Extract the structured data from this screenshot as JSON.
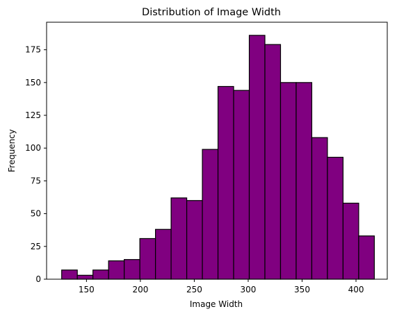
{
  "chart_data": {
    "type": "bar",
    "title": "Distribution of Image Width",
    "xlabel": "Image Width",
    "ylabel": "Frequency",
    "bar_color": "#800080",
    "edge_color": "#000000",
    "x_range": [
      113,
      429
    ],
    "y_range": [
      0,
      196
    ],
    "x_ticks": [
      150,
      200,
      250,
      300,
      350,
      400
    ],
    "y_ticks": [
      0,
      25,
      50,
      75,
      100,
      125,
      150,
      175
    ],
    "bins": [
      {
        "start": 127,
        "end": 141.5,
        "value": 7
      },
      {
        "start": 141.5,
        "end": 156,
        "value": 3
      },
      {
        "start": 156,
        "end": 170.5,
        "value": 7
      },
      {
        "start": 170.5,
        "end": 185,
        "value": 14
      },
      {
        "start": 185,
        "end": 199.5,
        "value": 15
      },
      {
        "start": 199.5,
        "end": 214,
        "value": 31
      },
      {
        "start": 214,
        "end": 228.5,
        "value": 38
      },
      {
        "start": 228.5,
        "end": 243,
        "value": 62
      },
      {
        "start": 243,
        "end": 257.5,
        "value": 60
      },
      {
        "start": 257.5,
        "end": 272,
        "value": 99
      },
      {
        "start": 272,
        "end": 286.5,
        "value": 147
      },
      {
        "start": 286.5,
        "end": 301,
        "value": 144
      },
      {
        "start": 301,
        "end": 315.5,
        "value": 186
      },
      {
        "start": 315.5,
        "end": 330,
        "value": 179
      },
      {
        "start": 330,
        "end": 344.5,
        "value": 150
      },
      {
        "start": 344.5,
        "end": 359,
        "value": 150
      },
      {
        "start": 359,
        "end": 373.5,
        "value": 108
      },
      {
        "start": 373.5,
        "end": 388,
        "value": 93
      },
      {
        "start": 388,
        "end": 402.5,
        "value": 58
      },
      {
        "start": 402.5,
        "end": 417,
        "value": 33
      }
    ]
  }
}
